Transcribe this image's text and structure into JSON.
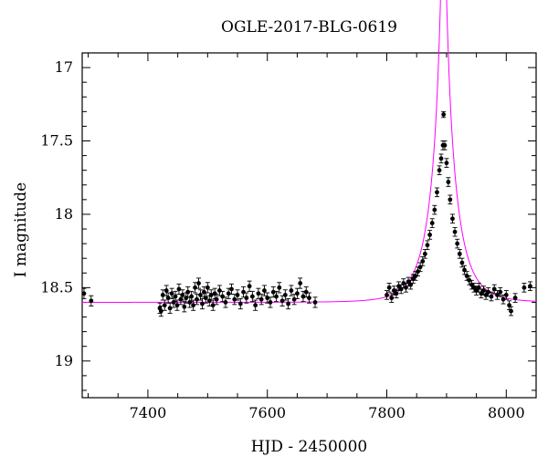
{
  "chart_data": {
    "type": "scatter",
    "title": "OGLE-2017-BLG-0619",
    "xlabel": "HJD - 2450000",
    "ylabel": "I magnitude",
    "xlim": [
      7290,
      8050
    ],
    "ylim": [
      19.25,
      16.9
    ],
    "y_inverted": true,
    "x_ticks": [
      7400,
      7600,
      7800,
      8000
    ],
    "y_ticks": [
      17,
      17.5,
      18,
      18.5,
      19
    ],
    "grid": false,
    "colors": {
      "data": "#000000",
      "model": "#ff00ff"
    },
    "series": [
      {
        "type": "scatter_errorbar",
        "points": [
          [
            7293,
            18.54,
            0.035
          ],
          [
            7305,
            18.59,
            0.035
          ],
          [
            7420,
            18.64,
            0.035
          ],
          [
            7422,
            18.66,
            0.035
          ],
          [
            7425,
            18.55,
            0.035
          ],
          [
            7428,
            18.62,
            0.035
          ],
          [
            7431,
            18.52,
            0.035
          ],
          [
            7434,
            18.57,
            0.035
          ],
          [
            7437,
            18.64,
            0.035
          ],
          [
            7440,
            18.54,
            0.035
          ],
          [
            7443,
            18.6,
            0.035
          ],
          [
            7446,
            18.56,
            0.035
          ],
          [
            7449,
            18.62,
            0.035
          ],
          [
            7452,
            18.51,
            0.035
          ],
          [
            7455,
            18.58,
            0.035
          ],
          [
            7458,
            18.55,
            0.035
          ],
          [
            7461,
            18.63,
            0.035
          ],
          [
            7464,
            18.57,
            0.035
          ],
          [
            7467,
            18.53,
            0.035
          ],
          [
            7470,
            18.6,
            0.035
          ],
          [
            7473,
            18.56,
            0.035
          ],
          [
            7476,
            18.62,
            0.035
          ],
          [
            7479,
            18.5,
            0.035
          ],
          [
            7482,
            18.58,
            0.035
          ],
          [
            7485,
            18.47,
            0.035
          ],
          [
            7488,
            18.55,
            0.035
          ],
          [
            7491,
            18.61,
            0.035
          ],
          [
            7494,
            18.53,
            0.035
          ],
          [
            7497,
            18.57,
            0.035
          ],
          [
            7500,
            18.5,
            0.035
          ],
          [
            7503,
            18.59,
            0.035
          ],
          [
            7506,
            18.55,
            0.035
          ],
          [
            7509,
            18.62,
            0.035
          ],
          [
            7512,
            18.54,
            0.035
          ],
          [
            7515,
            18.58,
            0.035
          ],
          [
            7520,
            18.52,
            0.035
          ],
          [
            7525,
            18.56,
            0.035
          ],
          [
            7530,
            18.6,
            0.035
          ],
          [
            7535,
            18.54,
            0.035
          ],
          [
            7540,
            18.51,
            0.035
          ],
          [
            7545,
            18.58,
            0.035
          ],
          [
            7550,
            18.55,
            0.035
          ],
          [
            7555,
            18.61,
            0.035
          ],
          [
            7560,
            18.53,
            0.035
          ],
          [
            7565,
            18.57,
            0.035
          ],
          [
            7570,
            18.49,
            0.035
          ],
          [
            7575,
            18.56,
            0.035
          ],
          [
            7580,
            18.62,
            0.035
          ],
          [
            7585,
            18.54,
            0.035
          ],
          [
            7590,
            18.58,
            0.035
          ],
          [
            7595,
            18.52,
            0.035
          ],
          [
            7600,
            18.57,
            0.035
          ],
          [
            7605,
            18.6,
            0.035
          ],
          [
            7610,
            18.53,
            0.035
          ],
          [
            7615,
            18.56,
            0.035
          ],
          [
            7620,
            18.5,
            0.035
          ],
          [
            7625,
            18.59,
            0.035
          ],
          [
            7630,
            18.55,
            0.035
          ],
          [
            7635,
            18.61,
            0.035
          ],
          [
            7640,
            18.52,
            0.035
          ],
          [
            7645,
            18.58,
            0.035
          ],
          [
            7650,
            18.54,
            0.035
          ],
          [
            7655,
            18.47,
            0.035
          ],
          [
            7660,
            18.56,
            0.035
          ],
          [
            7665,
            18.53,
            0.035
          ],
          [
            7670,
            18.57,
            0.035
          ],
          [
            7680,
            18.6,
            0.035
          ],
          [
            7800,
            18.55,
            0.03
          ],
          [
            7804,
            18.5,
            0.03
          ],
          [
            7808,
            18.57,
            0.03
          ],
          [
            7812,
            18.52,
            0.03
          ],
          [
            7816,
            18.54,
            0.03
          ],
          [
            7820,
            18.49,
            0.03
          ],
          [
            7824,
            18.51,
            0.03
          ],
          [
            7828,
            18.47,
            0.03
          ],
          [
            7832,
            18.5,
            0.03
          ],
          [
            7836,
            18.46,
            0.03
          ],
          [
            7840,
            18.48,
            0.03
          ],
          [
            7844,
            18.44,
            0.03
          ],
          [
            7848,
            18.42,
            0.03
          ],
          [
            7852,
            18.39,
            0.03
          ],
          [
            7856,
            18.36,
            0.03
          ],
          [
            7860,
            18.32,
            0.03
          ],
          [
            7864,
            18.27,
            0.03
          ],
          [
            7868,
            18.21,
            0.03
          ],
          [
            7872,
            18.14,
            0.03
          ],
          [
            7876,
            18.06,
            0.03
          ],
          [
            7880,
            17.97,
            0.03
          ],
          [
            7884,
            17.85,
            0.03
          ],
          [
            7888,
            17.7,
            0.03
          ],
          [
            7891,
            17.62,
            0.03
          ],
          [
            7894,
            17.53,
            0.03
          ],
          [
            7895,
            17.32,
            0.02
          ],
          [
            7897,
            17.53,
            0.03
          ],
          [
            7900,
            17.65,
            0.03
          ],
          [
            7903,
            17.78,
            0.03
          ],
          [
            7906,
            17.9,
            0.03
          ],
          [
            7910,
            18.03,
            0.03
          ],
          [
            7914,
            18.12,
            0.03
          ],
          [
            7918,
            18.2,
            0.03
          ],
          [
            7922,
            18.27,
            0.03
          ],
          [
            7926,
            18.33,
            0.03
          ],
          [
            7930,
            18.38,
            0.03
          ],
          [
            7934,
            18.42,
            0.03
          ],
          [
            7938,
            18.45,
            0.03
          ],
          [
            7942,
            18.48,
            0.03
          ],
          [
            7946,
            18.5,
            0.03
          ],
          [
            7950,
            18.52,
            0.03
          ],
          [
            7954,
            18.5,
            0.03
          ],
          [
            7958,
            18.54,
            0.03
          ],
          [
            7962,
            18.52,
            0.03
          ],
          [
            7966,
            18.55,
            0.03
          ],
          [
            7970,
            18.53,
            0.03
          ],
          [
            7975,
            18.56,
            0.03
          ],
          [
            7980,
            18.51,
            0.03
          ],
          [
            7985,
            18.55,
            0.03
          ],
          [
            7990,
            18.53,
            0.03
          ],
          [
            7995,
            18.58,
            0.03
          ],
          [
            8000,
            18.55,
            0.03
          ],
          [
            8005,
            18.62,
            0.03
          ],
          [
            8008,
            18.66,
            0.03
          ],
          [
            8015,
            18.57,
            0.03
          ],
          [
            8030,
            18.5,
            0.03
          ],
          [
            8040,
            18.49,
            0.03
          ]
        ]
      },
      {
        "type": "model_line",
        "t0": 7895,
        "tE": 40,
        "u0": 0.08,
        "baseline_mag": 18.6
      }
    ]
  }
}
